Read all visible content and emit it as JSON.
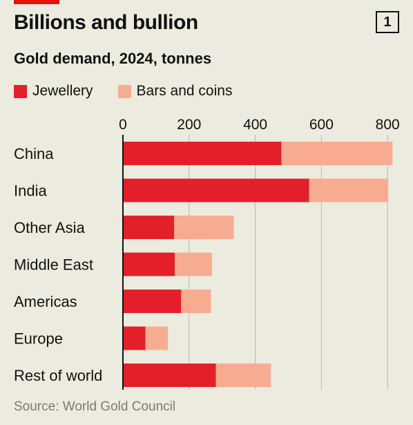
{
  "header": {
    "title": "Billions and bullion",
    "badge": "1",
    "subtitle": "Gold demand, 2024, tonnes"
  },
  "legend": {
    "items": [
      {
        "label": "Jewellery",
        "color": "#e3202a"
      },
      {
        "label": "Bars and coins",
        "color": "#f7ac91"
      }
    ]
  },
  "source": "Source: World Gold Council",
  "chart_data": {
    "type": "bar",
    "orientation": "horizontal",
    "stacked": true,
    "categories": [
      "China",
      "India",
      "Other Asia",
      "Middle East",
      "Americas",
      "Europe",
      "Rest of world"
    ],
    "series": [
      {
        "name": "Jewellery",
        "color": "#e3202a",
        "values": [
          479,
          563,
          155,
          157,
          176,
          68,
          281
        ]
      },
      {
        "name": "Bars and coins",
        "color": "#f7ac91",
        "values": [
          336,
          239,
          180,
          112,
          90,
          68,
          166
        ]
      }
    ],
    "xlim": [
      0,
      820
    ],
    "xticks": [
      0,
      200,
      400,
      600,
      800
    ],
    "grid": true,
    "legend_placement": "top-left"
  }
}
